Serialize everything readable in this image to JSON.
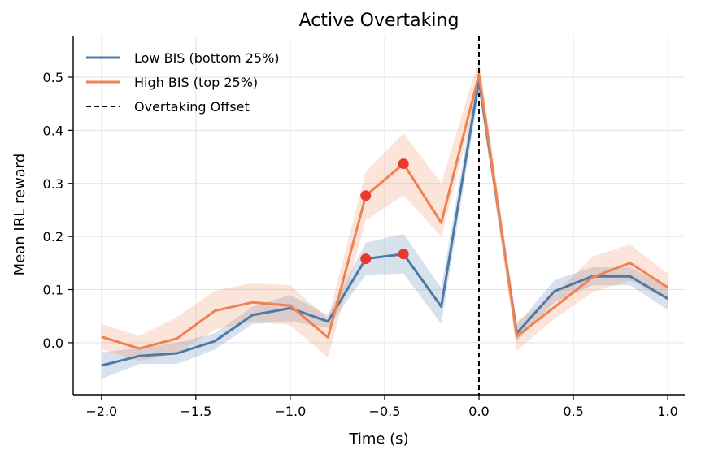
{
  "chart_data": {
    "type": "line",
    "title": "Active Overtaking",
    "xlabel": "Time (s)",
    "ylabel": "Mean IRL reward",
    "xlim": [
      -2.15,
      1.09
    ],
    "ylim": [
      -0.098,
      0.578
    ],
    "x_ticks": [
      -2.0,
      -1.5,
      -1.0,
      -0.5,
      0.0,
      0.5,
      1.0
    ],
    "x_tick_labels": [
      "−2.0",
      "−1.5",
      "−1.0",
      "−0.5",
      "0.0",
      "0.5",
      "1.0"
    ],
    "y_ticks": [
      0.0,
      0.1,
      0.2,
      0.3,
      0.4,
      0.5
    ],
    "y_tick_labels": [
      "0.0",
      "0.1",
      "0.2",
      "0.3",
      "0.4",
      "0.5"
    ],
    "grid": true,
    "legend_position": "top-left",
    "series": [
      {
        "name": "Low BIS (bottom 25%)",
        "color": "#4e79a7",
        "x": [
          -2.0,
          -1.8,
          -1.6,
          -1.4,
          -1.2,
          -1.0,
          -0.8,
          -0.6,
          -0.4,
          -0.2,
          0.0,
          0.2,
          0.4,
          0.6,
          0.8,
          1.0
        ],
        "y": [
          -0.043,
          -0.025,
          -0.02,
          0.003,
          0.052,
          0.065,
          0.04,
          0.158,
          0.167,
          0.068,
          0.495,
          0.018,
          0.097,
          0.125,
          0.125,
          0.083
        ],
        "lower": [
          -0.068,
          -0.04,
          -0.04,
          -0.013,
          0.035,
          0.04,
          0.028,
          0.128,
          0.13,
          0.035,
          0.47,
          0.003,
          0.076,
          0.108,
          0.108,
          0.062
        ],
        "upper": [
          -0.018,
          -0.01,
          0.0,
          0.018,
          0.068,
          0.09,
          0.052,
          0.188,
          0.205,
          0.103,
          0.52,
          0.033,
          0.118,
          0.142,
          0.142,
          0.104
        ],
        "highlighted_x": [
          -0.6,
          -0.4
        ]
      },
      {
        "name": "High BIS (top 25%)",
        "color": "#ef8250",
        "x": [
          -2.0,
          -1.8,
          -1.6,
          -1.4,
          -1.2,
          -1.0,
          -0.8,
          -0.6,
          -0.4,
          -0.2,
          0.0,
          0.2,
          0.4,
          0.6,
          0.8,
          1.0
        ],
        "y": [
          0.011,
          -0.011,
          0.008,
          0.06,
          0.076,
          0.07,
          0.01,
          0.277,
          0.337,
          0.226,
          0.505,
          0.012,
          0.067,
          0.123,
          0.15,
          0.104
        ],
        "lower": [
          -0.012,
          -0.035,
          -0.02,
          0.025,
          0.04,
          0.033,
          -0.028,
          0.23,
          0.278,
          0.2,
          0.475,
          -0.015,
          0.045,
          0.095,
          0.117,
          0.08
        ],
        "upper": [
          0.035,
          0.013,
          0.048,
          0.098,
          0.112,
          0.108,
          0.045,
          0.322,
          0.395,
          0.3,
          0.535,
          0.04,
          0.09,
          0.162,
          0.185,
          0.13
        ],
        "highlighted_x": [
          -0.6,
          -0.4
        ]
      }
    ],
    "reference_line": {
      "name": "Overtaking Offset",
      "x": 0.0,
      "color": "#000000",
      "style": "dashed"
    },
    "highlight_marker_color": "#e8392a"
  }
}
